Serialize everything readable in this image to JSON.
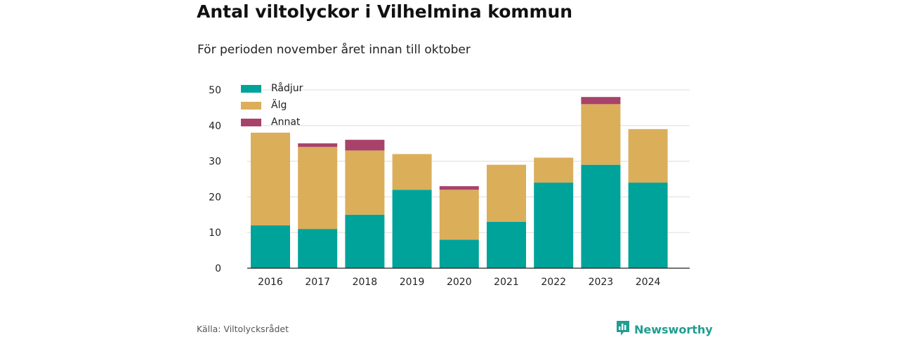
{
  "title": "Antal viltolyckor i Vilhelmina kommun",
  "subtitle": "För perioden november året innan till oktober",
  "source": "Källa: Viltolycksrådet",
  "brand": {
    "name": "Newsworthy",
    "icon": "newsworthy-logo-icon",
    "color": "#1f9e92"
  },
  "chart_data": {
    "type": "bar",
    "stacked": true,
    "categories": [
      "2016",
      "2017",
      "2018",
      "2019",
      "2020",
      "2021",
      "2022",
      "2023",
      "2024"
    ],
    "series": [
      {
        "name": "Rådjur",
        "color": "#00a39a",
        "values": [
          12,
          11,
          15,
          22,
          8,
          13,
          24,
          29,
          24
        ]
      },
      {
        "name": "Älg",
        "color": "#dbae5a",
        "values": [
          26,
          23,
          18,
          10,
          14,
          16,
          7,
          17,
          15
        ]
      },
      {
        "name": "Annat",
        "color": "#a8426a",
        "values": [
          0,
          1,
          3,
          0,
          1,
          0,
          0,
          2,
          0
        ]
      }
    ],
    "yticks": [
      0,
      10,
      20,
      30,
      40,
      50
    ],
    "ylim": [
      0,
      50
    ],
    "grid": "horizontal",
    "legend_position": "top-left"
  }
}
